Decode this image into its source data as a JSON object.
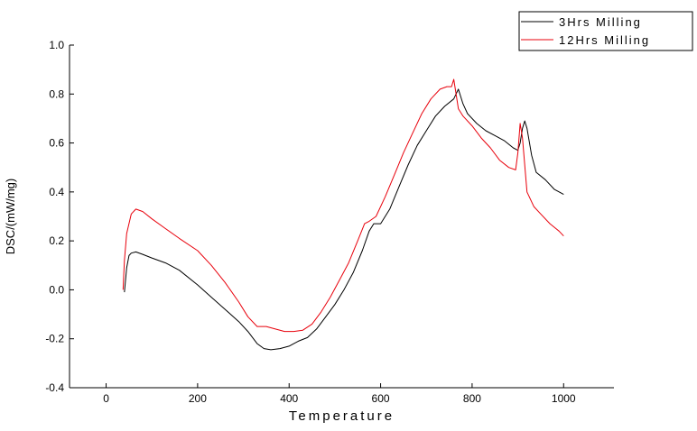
{
  "chart_data": {
    "type": "line",
    "title": "",
    "xlabel": "Temperature",
    "ylabel": "DSC/(mW/mg)",
    "xlim": [
      -80,
      1110
    ],
    "ylim": [
      -0.4,
      1.0
    ],
    "x_ticks": [
      0,
      200,
      400,
      600,
      800,
      1000
    ],
    "y_ticks": [
      1.0,
      0.8,
      0.6,
      0.4,
      0.2,
      0.0,
      -0.2,
      -0.4
    ],
    "y_tick_labels": [
      "1.0",
      "0.8",
      "0.6",
      "0.4",
      "0.2",
      "0.0",
      "-0.2",
      "-0.4"
    ],
    "grid": false,
    "legend": "top-right",
    "series": [
      {
        "name": "3Hrs Milling",
        "color": "#000000",
        "points": [
          [
            40,
            -0.01
          ],
          [
            45,
            0.09
          ],
          [
            50,
            0.14
          ],
          [
            55,
            0.15
          ],
          [
            65,
            0.155
          ],
          [
            80,
            0.145
          ],
          [
            100,
            0.13
          ],
          [
            130,
            0.11
          ],
          [
            160,
            0.08
          ],
          [
            200,
            0.02
          ],
          [
            230,
            -0.03
          ],
          [
            260,
            -0.08
          ],
          [
            290,
            -0.13
          ],
          [
            310,
            -0.17
          ],
          [
            330,
            -0.22
          ],
          [
            345,
            -0.24
          ],
          [
            360,
            -0.245
          ],
          [
            380,
            -0.24
          ],
          [
            400,
            -0.23
          ],
          [
            420,
            -0.21
          ],
          [
            440,
            -0.195
          ],
          [
            460,
            -0.16
          ],
          [
            480,
            -0.11
          ],
          [
            500,
            -0.06
          ],
          [
            520,
            0.0
          ],
          [
            540,
            0.07
          ],
          [
            560,
            0.16
          ],
          [
            575,
            0.24
          ],
          [
            585,
            0.27
          ],
          [
            600,
            0.27
          ],
          [
            620,
            0.33
          ],
          [
            640,
            0.42
          ],
          [
            660,
            0.51
          ],
          [
            680,
            0.59
          ],
          [
            700,
            0.65
          ],
          [
            720,
            0.71
          ],
          [
            740,
            0.75
          ],
          [
            760,
            0.78
          ],
          [
            770,
            0.82
          ],
          [
            780,
            0.76
          ],
          [
            790,
            0.72
          ],
          [
            810,
            0.68
          ],
          [
            830,
            0.65
          ],
          [
            850,
            0.63
          ],
          [
            870,
            0.61
          ],
          [
            890,
            0.58
          ],
          [
            900,
            0.57
          ],
          [
            905,
            0.6
          ],
          [
            910,
            0.66
          ],
          [
            915,
            0.69
          ],
          [
            920,
            0.66
          ],
          [
            930,
            0.55
          ],
          [
            940,
            0.48
          ],
          [
            960,
            0.45
          ],
          [
            980,
            0.41
          ],
          [
            1000,
            0.39
          ]
        ]
      },
      {
        "name": "12Hrs Milling",
        "color": "#e8000b",
        "points": [
          [
            37,
            0.0
          ],
          [
            40,
            0.12
          ],
          [
            45,
            0.23
          ],
          [
            55,
            0.31
          ],
          [
            65,
            0.33
          ],
          [
            80,
            0.32
          ],
          [
            100,
            0.29
          ],
          [
            130,
            0.25
          ],
          [
            160,
            0.21
          ],
          [
            200,
            0.16
          ],
          [
            230,
            0.1
          ],
          [
            260,
            0.03
          ],
          [
            290,
            -0.05
          ],
          [
            310,
            -0.11
          ],
          [
            330,
            -0.15
          ],
          [
            350,
            -0.15
          ],
          [
            370,
            -0.16
          ],
          [
            390,
            -0.17
          ],
          [
            410,
            -0.17
          ],
          [
            430,
            -0.165
          ],
          [
            450,
            -0.14
          ],
          [
            470,
            -0.09
          ],
          [
            490,
            -0.03
          ],
          [
            510,
            0.04
          ],
          [
            530,
            0.11
          ],
          [
            550,
            0.2
          ],
          [
            565,
            0.27
          ],
          [
            575,
            0.28
          ],
          [
            590,
            0.3
          ],
          [
            610,
            0.38
          ],
          [
            630,
            0.47
          ],
          [
            650,
            0.56
          ],
          [
            670,
            0.64
          ],
          [
            690,
            0.72
          ],
          [
            710,
            0.78
          ],
          [
            730,
            0.82
          ],
          [
            745,
            0.83
          ],
          [
            755,
            0.83
          ],
          [
            760,
            0.86
          ],
          [
            770,
            0.74
          ],
          [
            780,
            0.71
          ],
          [
            800,
            0.67
          ],
          [
            820,
            0.62
          ],
          [
            840,
            0.58
          ],
          [
            860,
            0.53
          ],
          [
            880,
            0.5
          ],
          [
            895,
            0.49
          ],
          [
            900,
            0.56
          ],
          [
            905,
            0.68
          ],
          [
            910,
            0.62
          ],
          [
            920,
            0.4
          ],
          [
            935,
            0.34
          ],
          [
            950,
            0.31
          ],
          [
            970,
            0.27
          ],
          [
            990,
            0.24
          ],
          [
            1000,
            0.22
          ]
        ]
      }
    ]
  }
}
